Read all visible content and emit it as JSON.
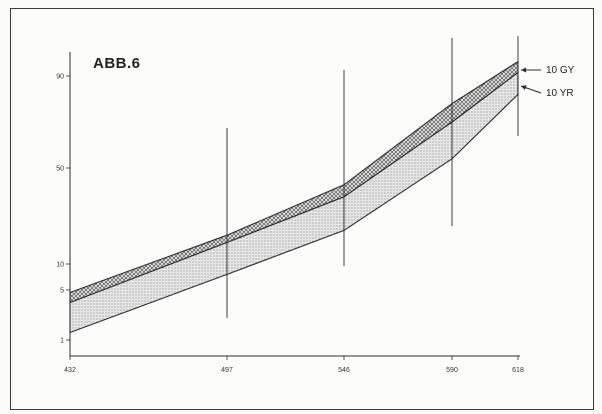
{
  "chart_data": {
    "type": "area",
    "title": "ABB.6",
    "xlabel": "",
    "ylabel": "",
    "x_ticks": [
      "432",
      "497",
      "546",
      "590",
      "618"
    ],
    "y_ticks": [
      "1",
      "5",
      "10",
      "50",
      "90"
    ],
    "xlim": [
      432,
      618
    ],
    "grid": false,
    "x": [
      432,
      497,
      546,
      590,
      618
    ],
    "series": [
      {
        "name": "10 GY",
        "upper": [
          4.8,
          22,
          43,
          78,
          98
        ],
        "lower": [
          4.0,
          19,
          38,
          70,
          92
        ]
      },
      {
        "name": "10 YR",
        "upper": [
          4.0,
          19,
          38,
          70,
          92
        ],
        "lower": [
          1.6,
          8,
          24,
          54,
          82
        ]
      }
    ],
    "annotations": [
      "10 GY",
      "10 YR"
    ],
    "colors": {
      "ink": "#2b2b2b",
      "gy_fill": "#9a9a9a",
      "yr_fill": "#cfcfcf"
    }
  }
}
